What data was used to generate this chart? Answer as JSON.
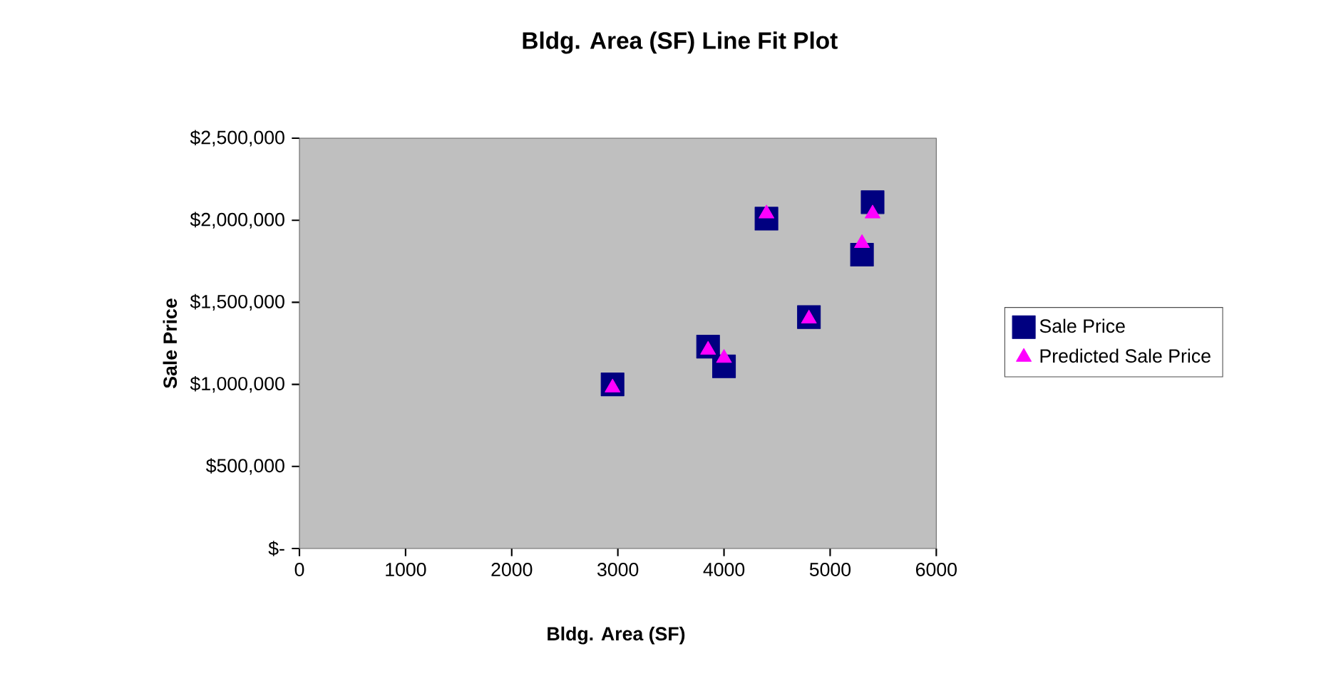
{
  "chart_data": {
    "type": "scatter",
    "title": "Bldg. Area (SF) Line Fit  Plot",
    "xlabel": "Bldg. Area (SF)",
    "ylabel": "Sale Price",
    "x": [
      2950,
      3850,
      4000,
      4400,
      4800,
      5300,
      5400
    ],
    "series": [
      {
        "name": "Sale Price",
        "color": "#000080",
        "marker": "square",
        "values": [
          1000000,
          1230000,
          1110000,
          2010000,
          1410000,
          1790000,
          2110000
        ]
      },
      {
        "name": "Predicted Sale Price",
        "color": "#ff00ff",
        "marker": "triangle",
        "values": [
          980000,
          1210000,
          1160000,
          2040000,
          1400000,
          1860000,
          2040000
        ]
      }
    ],
    "xlim": [
      0,
      6000
    ],
    "xticks": [
      0,
      1000,
      2000,
      3000,
      4000,
      5000,
      6000
    ],
    "ylim": [
      0,
      2500000
    ],
    "yticks": [
      {
        "value": 0,
        "label": "$-"
      },
      {
        "value": 500000,
        "label": "$500,000"
      },
      {
        "value": 1000000,
        "label": "$1,000,000"
      },
      {
        "value": 1500000,
        "label": "$1,500,000"
      },
      {
        "value": 2000000,
        "label": "$2,000,000"
      },
      {
        "value": 2500000,
        "label": "$2,500,000"
      }
    ],
    "grid": false,
    "legend": "right"
  }
}
